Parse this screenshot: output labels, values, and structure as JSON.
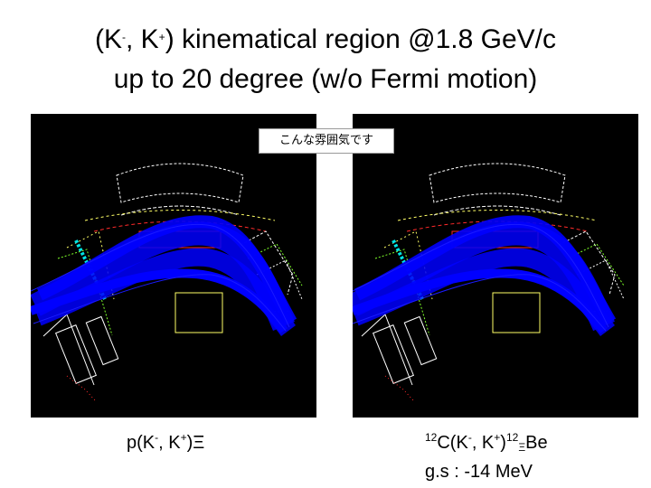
{
  "title": {
    "l1_a": "(K",
    "l1_b": "-",
    "l1_c": ", K",
    "l1_d": "+",
    "l1_e": ") kinematical region  @1.8 GeV/c",
    "line2": "up to 20 degree (w/o Fermi motion)"
  },
  "note": "こんな雰囲気です",
  "left_caption": {
    "a": "p(K",
    "b": "-",
    "c": ", K",
    "d": "+",
    "e": ")Ξ"
  },
  "right_caption": {
    "a": "12",
    "b": "C(K",
    "c": "-",
    "d": ", K",
    "e": "+",
    "f": ")",
    "g": "12",
    "h": "Ξ",
    "i": "Be"
  },
  "gs_text": "g.s : -14 MeV",
  "colors": {
    "background": "#000000",
    "tracks": "#0000ff",
    "magnet": "#ffffff",
    "field": "#ff2a2a",
    "chambers": "#7fff2a",
    "detector": "#ffff66",
    "counter": "#00e5e5"
  }
}
